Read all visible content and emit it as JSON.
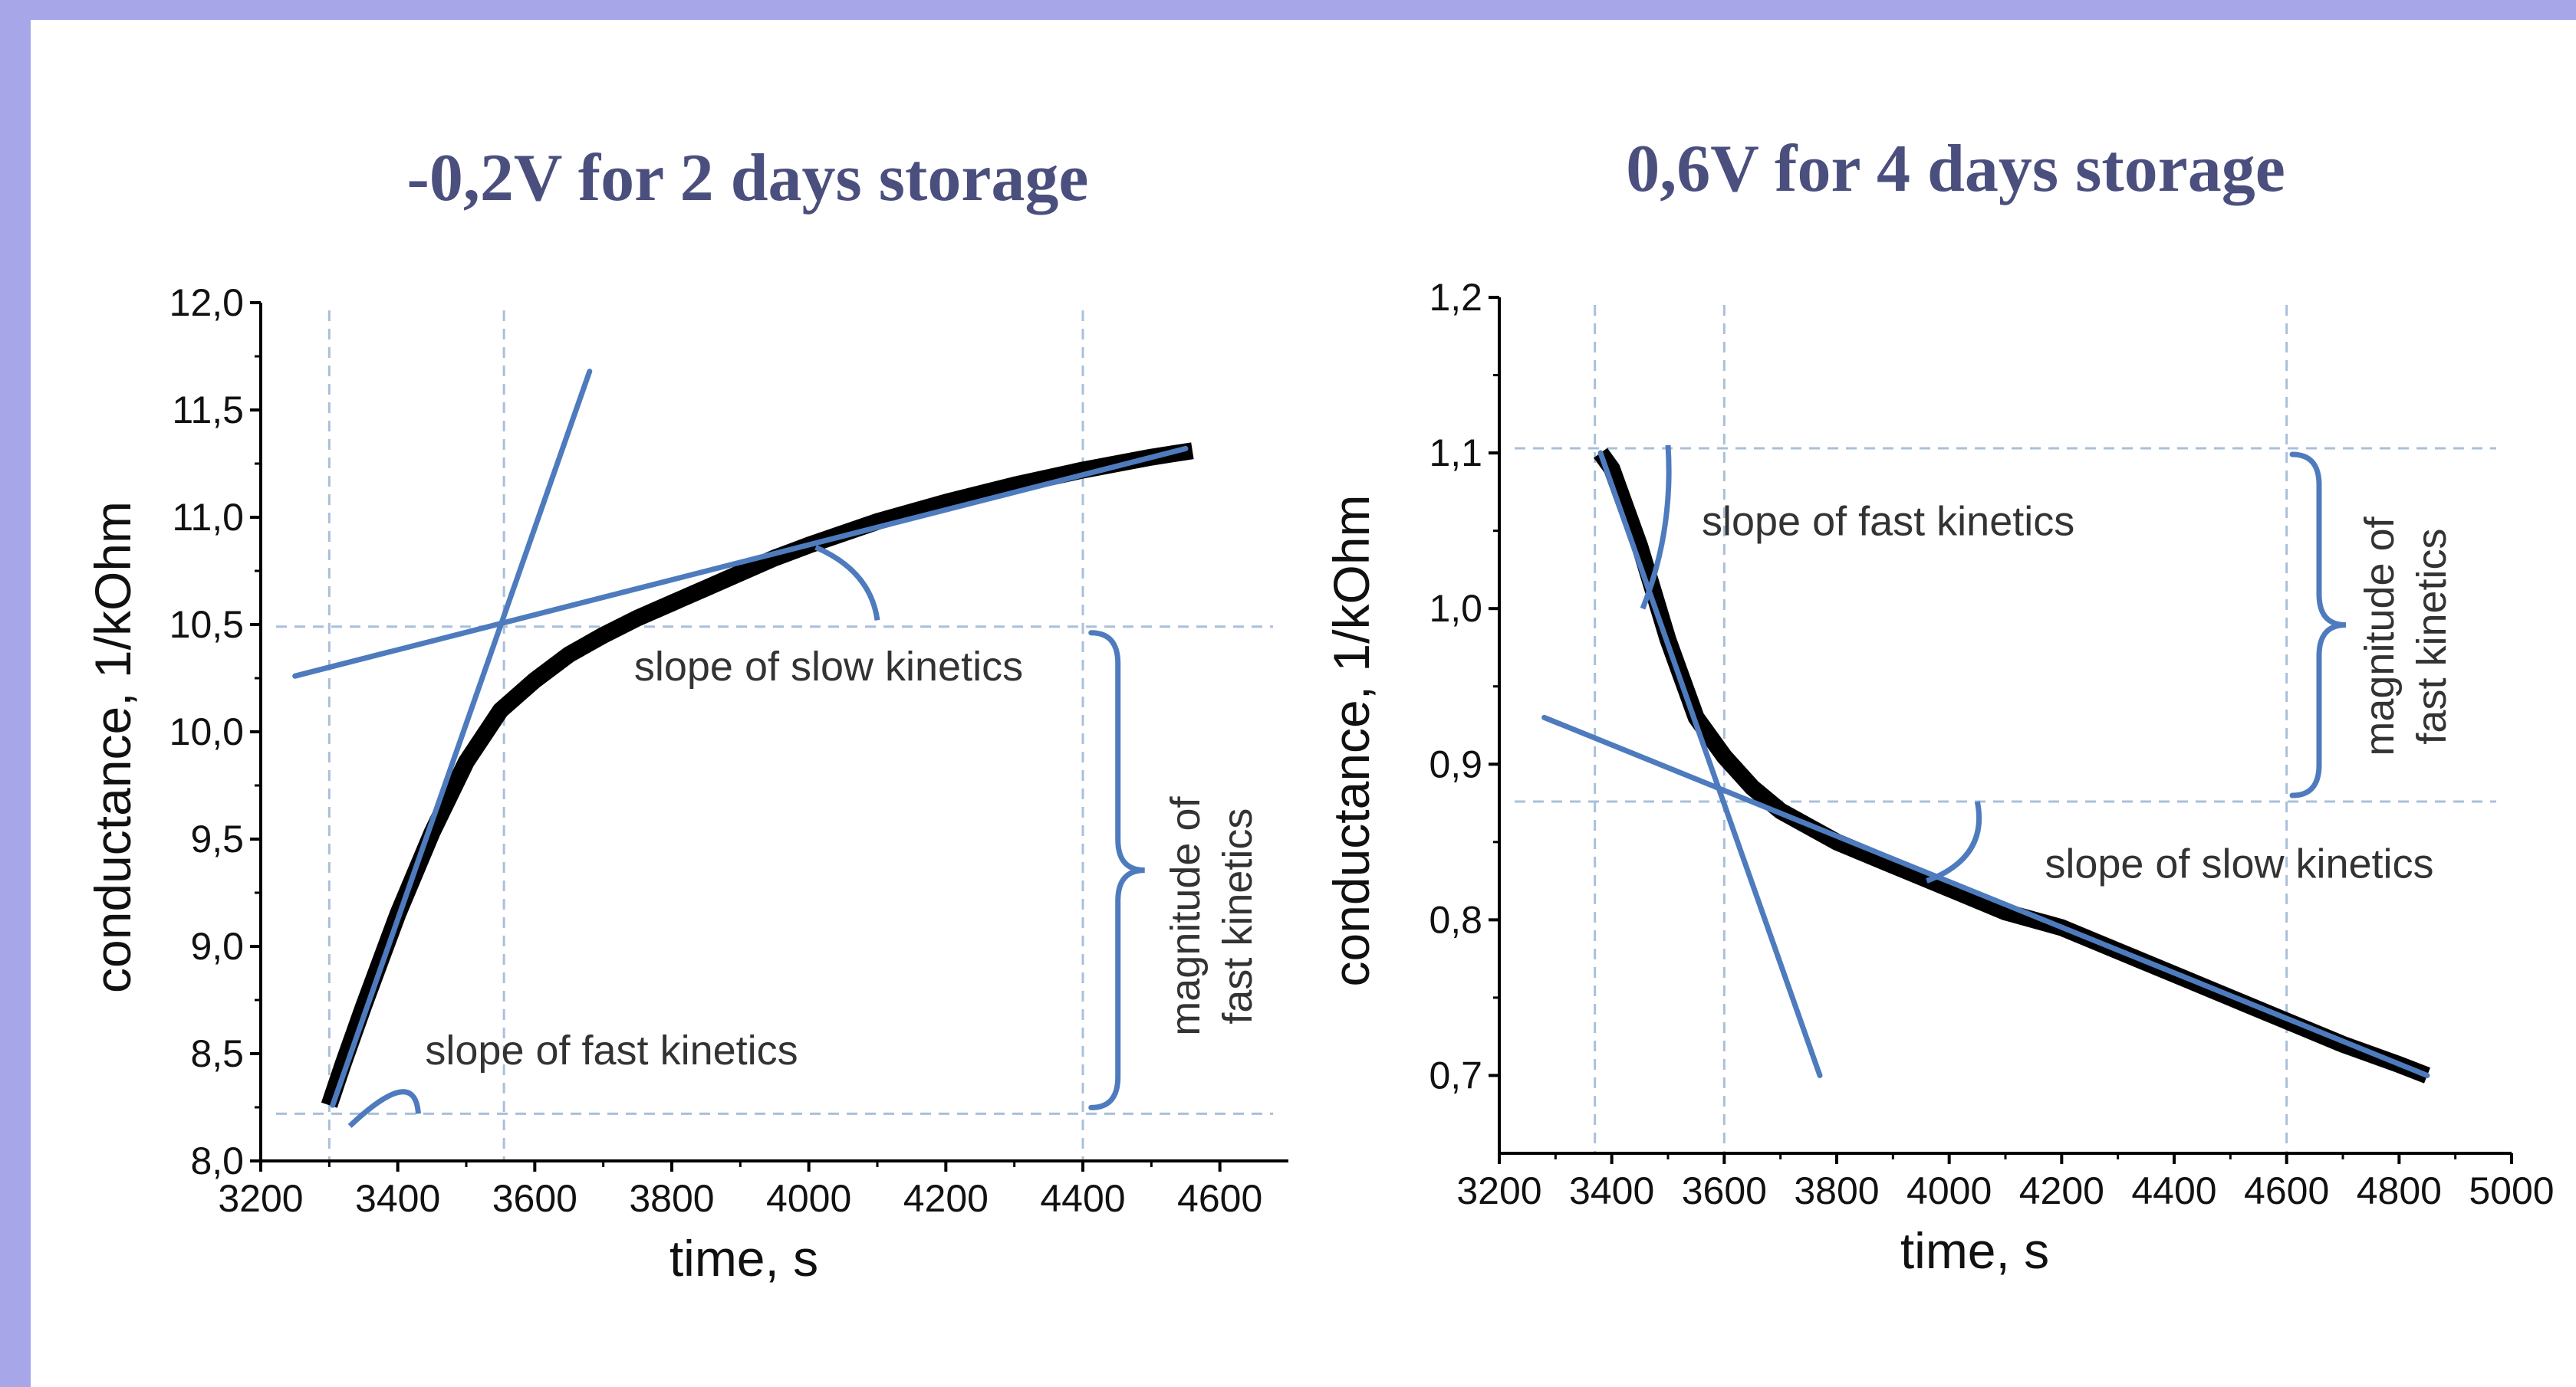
{
  "colors": {
    "frame": "#a6a6e8",
    "title": "#4a4f7e",
    "fit_line": "#4e7bbd",
    "guide_line": "#a9c0d9",
    "data": "#000000"
  },
  "chart_data": [
    {
      "type": "line",
      "title": "-0,2V for 2 days storage",
      "xlabel": "time, s",
      "ylabel": "conductance,  1/kOhm",
      "xlim": [
        3200,
        4700
      ],
      "ylim": [
        8.0,
        12.0
      ],
      "x_ticks": [
        3200,
        3400,
        3600,
        3800,
        4000,
        4200,
        4400,
        4600
      ],
      "x_tick_labels": [
        "3200",
        "3400",
        "3600",
        "3800",
        "4000",
        "4200",
        "4400",
        "4600"
      ],
      "y_ticks": [
        8.0,
        8.5,
        9.0,
        9.5,
        10.0,
        10.5,
        11.0,
        11.5,
        12.0
      ],
      "y_tick_labels": [
        "8,0",
        "8,5",
        "9,0",
        "9,5",
        "10,0",
        "10,5",
        "11,0",
        "11,5",
        "12,0"
      ],
      "series": [
        {
          "x": [
            3300,
            3320,
            3350,
            3400,
            3450,
            3500,
            3550,
            3600,
            3650,
            3700,
            3750,
            3800,
            3850,
            3900,
            3950,
            4000,
            4100,
            4200,
            4300,
            4400,
            4500,
            4560
          ],
          "y": [
            8.26,
            8.45,
            8.72,
            9.15,
            9.53,
            9.86,
            10.1,
            10.24,
            10.36,
            10.45,
            10.53,
            10.6,
            10.67,
            10.74,
            10.81,
            10.87,
            10.98,
            11.07,
            11.15,
            11.22,
            11.28,
            11.31
          ]
        }
      ],
      "fit_lines": [
        {
          "x": [
            3305,
            3680
          ],
          "y": [
            8.26,
            11.68
          ]
        },
        {
          "x": [
            3250,
            4550
          ],
          "y": [
            10.26,
            11.32
          ]
        }
      ],
      "guides_v": [
        3300,
        3555,
        4400
      ],
      "guides_h": [
        8.22,
        10.49
      ],
      "annotations": {
        "slope_slow": "slope of slow kinetics",
        "slope_fast": "slope of fast kinetics",
        "magnitude_line1": "magnitude of",
        "magnitude_line2": "fast kinetics"
      }
    },
    {
      "type": "line",
      "title": "0,6V for 4 days storage",
      "xlabel": "time, s",
      "ylabel": "conductance,  1/kOhm",
      "xlim": [
        3200,
        5000
      ],
      "ylim": [
        0.65,
        1.2
      ],
      "x_ticks": [
        3200,
        3400,
        3600,
        3800,
        4000,
        4200,
        4400,
        4600,
        4800,
        5000
      ],
      "x_tick_labels": [
        "3200",
        "3400",
        "3600",
        "3800",
        "4000",
        "4200",
        "4400",
        "4600",
        "4800",
        "5000"
      ],
      "y_ticks": [
        0.7,
        0.8,
        0.9,
        1.0,
        1.1,
        1.2
      ],
      "y_tick_labels": [
        "0,7",
        "0,8",
        "0,9",
        "1,0",
        "1,1",
        "1,2"
      ],
      "series": [
        {
          "x": [
            3380,
            3400,
            3450,
            3500,
            3550,
            3600,
            3650,
            3700,
            3800,
            3900,
            4000,
            4100,
            4200,
            4300,
            4400,
            4500,
            4600,
            4700,
            4800,
            4850
          ],
          "y": [
            1.1,
            1.09,
            1.04,
            0.98,
            0.93,
            0.905,
            0.885,
            0.87,
            0.85,
            0.835,
            0.82,
            0.805,
            0.795,
            0.78,
            0.765,
            0.75,
            0.735,
            0.72,
            0.707,
            0.7
          ]
        }
      ],
      "fit_lines": [
        {
          "x": [
            3380,
            3770
          ],
          "y": [
            1.1,
            0.7
          ]
        },
        {
          "x": [
            3280,
            4850
          ],
          "y": [
            0.93,
            0.7
          ]
        }
      ],
      "guides_v": [
        3370,
        3600,
        4600
      ],
      "guides_h": [
        1.103,
        0.876
      ],
      "annotations": {
        "slope_slow": "slope of slow kinetics",
        "slope_fast": "slope of fast kinetics",
        "magnitude_line1": "magnitude of",
        "magnitude_line2": "fast kinetics"
      }
    }
  ]
}
